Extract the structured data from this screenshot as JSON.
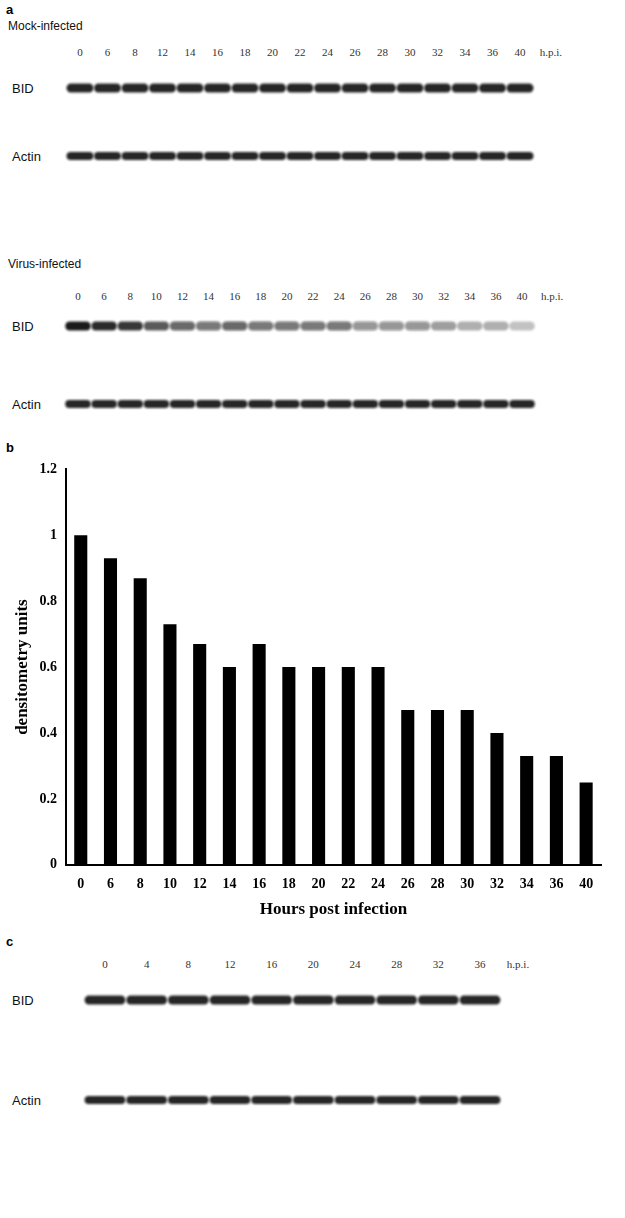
{
  "chart_data": {
    "type": "bar",
    "x_label": "Hours post infection",
    "y_label": "densitometry units",
    "categories": [
      "0",
      "6",
      "8",
      "10",
      "12",
      "14",
      "16",
      "18",
      "20",
      "22",
      "24",
      "26",
      "28",
      "30",
      "32",
      "34",
      "36",
      "40"
    ],
    "values": [
      1,
      0.93,
      0.87,
      0.73,
      0.67,
      0.6,
      0.67,
      0.6,
      0.6,
      0.6,
      0.6,
      0.47,
      0.47,
      0.47,
      0.4,
      0.33,
      0.33,
      0.25
    ],
    "color": "#000000",
    "ylim": [
      0,
      1.2
    ],
    "yticks": [
      0,
      0.2,
      0.4,
      0.6,
      0.8,
      1,
      1.2
    ],
    "grid": false
  },
  "figure": {
    "panels": [
      {
        "label": "a",
        "blots": [
          {
            "title": "Mock-infected",
            "lanes": [
              "0",
              "6",
              "8",
              "12",
              "14",
              "16",
              "18",
              "20",
              "22",
              "24",
              "26",
              "28",
              "30",
              "32",
              "34",
              "36",
              "40"
            ],
            "lane_unit": "h.p.i.",
            "rows": [
              "BID",
              "Actin"
            ]
          },
          {
            "title": "Virus-infected",
            "lanes": [
              "0",
              "6",
              "8",
              "10",
              "12",
              "14",
              "16",
              "18",
              "20",
              "22",
              "24",
              "26",
              "28",
              "30",
              "32",
              "34",
              "36",
              "40"
            ],
            "lane_unit": "h.p.i.",
            "rows": [
              "BID",
              "Actin"
            ]
          }
        ]
      },
      {
        "label": "b"
      },
      {
        "label": "c",
        "blots": [
          {
            "lanes": [
              "0",
              "4",
              "8",
              "12",
              "16",
              "20",
              "24",
              "28",
              "32",
              "36"
            ],
            "lane_unit": "h.p.i.",
            "rows": [
              "BID",
              "Actin"
            ]
          }
        ]
      }
    ]
  }
}
